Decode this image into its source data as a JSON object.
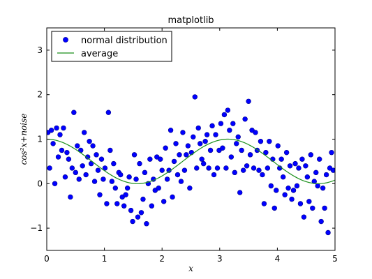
{
  "chart_data": {
    "type": "scatter",
    "title": "matplotlib",
    "xlabel": "x",
    "ylabel": "cos²x+noise",
    "xlim": [
      0,
      5
    ],
    "ylim": [
      -1.5,
      3.5
    ],
    "xticks": [
      0,
      1,
      2,
      3,
      4,
      5
    ],
    "yticks": [
      -1,
      0,
      1,
      2,
      3
    ],
    "xtick_labels": [
      "0",
      "1",
      "2",
      "3",
      "4",
      "5"
    ],
    "ytick_labels": [
      "−1",
      "0",
      "1",
      "2",
      "3"
    ],
    "grid": false,
    "legend_position": "upper-left",
    "colors": {
      "points": "#0000ff",
      "points_edge": "#00008b",
      "line": "#1a8f1a",
      "axes": "#000000"
    },
    "series": [
      {
        "name": "normal distribution",
        "kind": "scatter",
        "x": [
          0.02,
          0.05,
          0.08,
          0.11,
          0.14,
          0.17,
          0.2,
          0.23,
          0.26,
          0.29,
          0.32,
          0.35,
          0.38,
          0.41,
          0.44,
          0.47,
          0.5,
          0.53,
          0.56,
          0.59,
          0.62,
          0.65,
          0.68,
          0.71,
          0.74,
          0.77,
          0.8,
          0.83,
          0.86,
          0.89,
          0.92,
          0.95,
          0.98,
          1.01,
          1.04,
          1.07,
          1.1,
          1.13,
          1.16,
          1.19,
          1.22,
          1.25,
          1.28,
          1.31,
          1.34,
          1.37,
          1.4,
          1.43,
          1.46,
          1.49,
          1.52,
          1.55,
          1.58,
          1.61,
          1.64,
          1.67,
          1.7,
          1.73,
          1.76,
          1.79,
          1.82,
          1.85,
          1.88,
          1.91,
          1.94,
          1.97,
          2.0,
          2.03,
          2.06,
          2.09,
          2.12,
          2.15,
          2.18,
          2.21,
          2.24,
          2.27,
          2.3,
          2.33,
          2.36,
          2.39,
          2.42,
          2.45,
          2.48,
          2.51,
          2.54,
          2.57,
          2.6,
          2.63,
          2.66,
          2.69,
          2.72,
          2.75,
          2.78,
          2.81,
          2.84,
          2.87,
          2.9,
          2.93,
          2.96,
          2.99,
          3.02,
          3.05,
          3.08,
          3.11,
          3.14,
          3.17,
          3.2,
          3.23,
          3.26,
          3.29,
          3.32,
          3.35,
          3.38,
          3.41,
          3.44,
          3.47,
          3.5,
          3.53,
          3.56,
          3.59,
          3.62,
          3.65,
          3.68,
          3.71,
          3.74,
          3.77,
          3.8,
          3.83,
          3.86,
          3.89,
          3.92,
          3.95,
          3.98,
          4.01,
          4.04,
          4.07,
          4.1,
          4.13,
          4.16,
          4.19,
          4.22,
          4.25,
          4.28,
          4.31,
          4.34,
          4.37,
          4.4,
          4.43,
          4.46,
          4.49,
          4.52,
          4.55,
          4.58,
          4.61,
          4.64,
          4.67,
          4.7,
          4.73,
          4.76,
          4.79,
          4.82,
          4.85,
          4.88,
          4.91,
          4.94,
          4.97
        ],
        "y": [
          1.15,
          0.35,
          1.2,
          0.9,
          0.0,
          1.25,
          0.6,
          1.1,
          0.75,
          1.25,
          0.15,
          0.7,
          0.55,
          -0.3,
          0.35,
          1.6,
          0.25,
          0.85,
          0.1,
          0.75,
          0.4,
          1.15,
          0.2,
          0.6,
          0.95,
          0.45,
          0.85,
          0.05,
          0.65,
          0.3,
          -0.25,
          0.55,
          0.1,
          0.35,
          -0.45,
          1.6,
          0.75,
          0.05,
          0.45,
          -0.1,
          -0.45,
          0.25,
          0.2,
          -0.3,
          -0.5,
          -0.25,
          -0.1,
          0.15,
          -0.6,
          -0.85,
          0.65,
          0.1,
          -0.75,
          0.45,
          -0.65,
          -0.35,
          0.25,
          -0.9,
          0.0,
          0.55,
          -0.5,
          0.1,
          -0.15,
          0.6,
          -0.1,
          0.55,
          0.3,
          -0.4,
          0.8,
          0.1,
          0.3,
          1.2,
          -0.3,
          0.5,
          0.9,
          0.2,
          0.65,
          0.05,
          1.15,
          0.3,
          0.65,
          0.85,
          -0.1,
          0.7,
          1.05,
          1.95,
          0.35,
          1.25,
          0.9,
          0.55,
          0.45,
          0.95,
          1.1,
          0.35,
          0.75,
          1.3,
          0.2,
          1.1,
          0.35,
          0.75,
          1.35,
          0.8,
          1.55,
          0.35,
          1.65,
          1.2,
          0.6,
          1.35,
          0.25,
          0.9,
          1.05,
          -0.2,
          0.75,
          0.3,
          1.45,
          0.4,
          1.85,
          0.65,
          1.2,
          0.35,
          1.15,
          0.75,
          0.3,
          0.95,
          0.2,
          -0.45,
          0.7,
          0.35,
          0.95,
          -0.05,
          0.55,
          -0.55,
          -0.15,
          0.85,
          0.35,
          0.55,
          0.15,
          -0.25,
          0.7,
          -0.1,
          0.4,
          -0.35,
          -0.15,
          0.45,
          -0.05,
          0.35,
          -0.45,
          0.55,
          -0.75,
          0.4,
          0.15,
          -0.4,
          0.65,
          -0.55,
          0.05,
          0.25,
          -0.05,
          0.55,
          -0.85,
          -0.1,
          -0.55,
          0.2,
          -1.1,
          0.35,
          0.7,
          0.3
        ]
      },
      {
        "name": "average",
        "kind": "line",
        "function": "cos(x)^2",
        "x_range": [
          0,
          5
        ],
        "samples": 200
      }
    ]
  }
}
